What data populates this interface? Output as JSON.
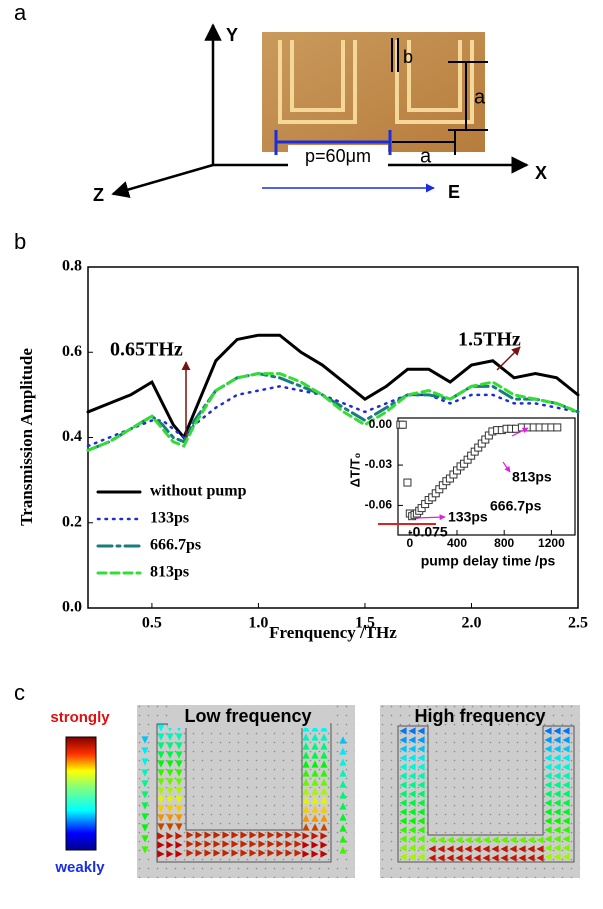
{
  "panel_labels": [
    "a",
    "b",
    "c"
  ],
  "diagram": {
    "axis_y": "Y",
    "axis_x": "X",
    "axis_z": "Z",
    "field": "E",
    "width_b": "b",
    "arm_a": "a",
    "period": "p=60μm",
    "gap_a": "a"
  },
  "chart_data": [
    {
      "type": "line",
      "x_label": "Frenquency /THz",
      "y_label": "Transmission Amplitude",
      "annotations": [
        "0.65THz",
        "1.5THz"
      ],
      "x": [
        0.2,
        0.3,
        0.4,
        0.5,
        0.55,
        0.6,
        0.65,
        0.7,
        0.8,
        0.9,
        1.0,
        1.1,
        1.2,
        1.3,
        1.4,
        1.5,
        1.6,
        1.7,
        1.8,
        1.9,
        2.0,
        2.1,
        2.2,
        2.3,
        2.4,
        2.5
      ],
      "series": [
        {
          "name": "without pump",
          "color": "#000000",
          "line_style": "solid",
          "values": [
            0.46,
            0.48,
            0.5,
            0.53,
            0.48,
            0.43,
            0.4,
            0.46,
            0.58,
            0.63,
            0.64,
            0.64,
            0.6,
            0.57,
            0.53,
            0.49,
            0.52,
            0.56,
            0.56,
            0.53,
            0.57,
            0.58,
            0.54,
            0.55,
            0.54,
            0.5
          ]
        },
        {
          "name": "133ps",
          "color": "#1f2bd6",
          "line_style": "dotted",
          "values": [
            0.38,
            0.4,
            0.42,
            0.44,
            0.44,
            0.42,
            0.4,
            0.43,
            0.47,
            0.5,
            0.51,
            0.52,
            0.51,
            0.5,
            0.48,
            0.46,
            0.48,
            0.5,
            0.5,
            0.48,
            0.5,
            0.5,
            0.48,
            0.48,
            0.47,
            0.46
          ]
        },
        {
          "name": "666.7ps",
          "color": "#1a7d7d",
          "line_style": "dashdot",
          "values": [
            0.37,
            0.39,
            0.42,
            0.45,
            0.43,
            0.4,
            0.39,
            0.44,
            0.51,
            0.54,
            0.55,
            0.54,
            0.52,
            0.5,
            0.47,
            0.44,
            0.47,
            0.5,
            0.5,
            0.49,
            0.52,
            0.52,
            0.49,
            0.49,
            0.48,
            0.46
          ]
        },
        {
          "name": "813ps",
          "color": "#33dd33",
          "line_style": "dashed",
          "values": [
            0.37,
            0.39,
            0.42,
            0.45,
            0.42,
            0.39,
            0.38,
            0.43,
            0.51,
            0.54,
            0.55,
            0.55,
            0.53,
            0.5,
            0.46,
            0.43,
            0.46,
            0.5,
            0.51,
            0.49,
            0.52,
            0.53,
            0.5,
            0.49,
            0.48,
            0.46
          ]
        }
      ],
      "xlim": [
        0.2,
        2.5
      ],
      "ylim": [
        0,
        0.8
      ],
      "xticks": [
        0.5,
        {
          "value": 1,
          "label": "1.0"
        },
        1.5,
        {
          "value": 2,
          "label": "2.0"
        },
        2.5
      ],
      "yticks": [
        {
          "value": 0,
          "label": "0.0"
        },
        0.2,
        0.4,
        0.6,
        0.8
      ],
      "legend": "lower left"
    },
    {
      "type": "scatter",
      "x_label": "pump delay time /ps",
      "y_label": "ΔT/T₀",
      "marker": "square",
      "color": "#333333",
      "annotations": [
        "813ps",
        "666.7ps",
        "133ps",
        "-0.075"
      ],
      "x": [
        -80,
        -60,
        -20,
        0,
        20,
        40,
        60,
        80,
        100,
        130,
        160,
        190,
        220,
        250,
        280,
        310,
        340,
        370,
        400,
        430,
        460,
        490,
        520,
        550,
        580,
        610,
        640,
        670,
        700,
        740,
        780,
        820,
        860,
        900,
        950,
        1000,
        1050,
        1100,
        1150,
        1200,
        1250
      ],
      "values": [
        0,
        0,
        -0.043,
        -0.066,
        -0.068,
        -0.067,
        -0.066,
        -0.064,
        -0.062,
        -0.059,
        -0.056,
        -0.054,
        -0.051,
        -0.048,
        -0.045,
        -0.042,
        -0.04,
        -0.037,
        -0.034,
        -0.031,
        -0.029,
        -0.026,
        -0.023,
        -0.02,
        -0.017,
        -0.014,
        -0.011,
        -0.008,
        -0.005,
        -0.004,
        -0.004,
        -0.003,
        -0.003,
        -0.003,
        -0.002,
        -0.002,
        -0.002,
        -0.002,
        -0.002,
        -0.002,
        -0.002
      ],
      "xlim": [
        -100,
        1400
      ],
      "ylim": [
        -0.082,
        0.005
      ],
      "xticks": [
        0,
        400,
        800,
        1200
      ],
      "yticks": [
        {
          "value": 0,
          "label": "0.00"
        },
        -0.03,
        -0.06
      ]
    }
  ],
  "field_maps": {
    "colorbar_top": "strongly",
    "colorbar_bottom": "weakly",
    "maps": [
      {
        "title": "Low frequency"
      },
      {
        "title": "High frequency"
      }
    ]
  }
}
